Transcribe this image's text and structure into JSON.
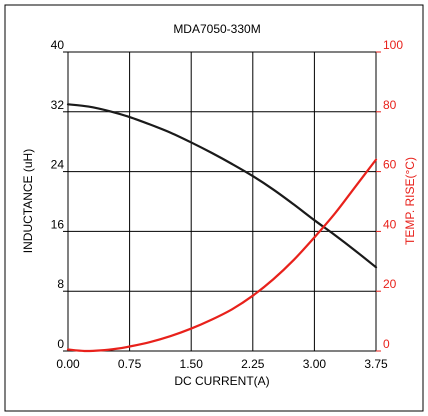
{
  "chart_data": {
    "type": "line",
    "title": "MDA7050-330M",
    "xlabel": "DC CURRENT(A)",
    "ylabel_left": "INDUCTANCE (uH)",
    "ylabel_right": "TEMP. RISE(°C)",
    "xlim": [
      0,
      3.75
    ],
    "ylim_left": [
      0,
      40
    ],
    "ylim_right": [
      0,
      100
    ],
    "x_ticks": [
      "0.00",
      "0.75",
      "1.50",
      "2.25",
      "3.00",
      "3.75"
    ],
    "y_left_ticks": [
      "0",
      "8",
      "16",
      "24",
      "32",
      "40"
    ],
    "y_right_ticks": [
      "0",
      "20",
      "40",
      "60",
      "80",
      "100"
    ],
    "grid": true,
    "series": [
      {
        "name": "INDUCTANCE (uH)",
        "axis": "left",
        "color": "#1a1a1a",
        "x": [
          0.0,
          0.25,
          0.5,
          0.75,
          1.0,
          1.25,
          1.5,
          1.75,
          2.0,
          2.25,
          2.5,
          2.75,
          3.0,
          3.25,
          3.5,
          3.75
        ],
        "y": [
          33.0,
          32.7,
          32.1,
          31.3,
          30.3,
          29.2,
          27.9,
          26.5,
          25.0,
          23.4,
          21.6,
          19.6,
          17.5,
          15.5,
          13.4,
          11.2
        ]
      },
      {
        "name": "TEMP. RISE(°C)",
        "axis": "right",
        "color": "#e8211b",
        "x": [
          0.0,
          0.2,
          0.4,
          0.6,
          0.75,
          1.0,
          1.25,
          1.5,
          1.75,
          2.0,
          2.25,
          2.5,
          2.75,
          3.0,
          3.25,
          3.5,
          3.75
        ],
        "y": [
          0.5,
          0.0,
          0.2,
          0.8,
          1.5,
          3.0,
          5.0,
          7.5,
          10.5,
          14.0,
          18.5,
          24.0,
          30.5,
          38.0,
          46.0,
          55.0,
          64.0
        ]
      }
    ]
  }
}
